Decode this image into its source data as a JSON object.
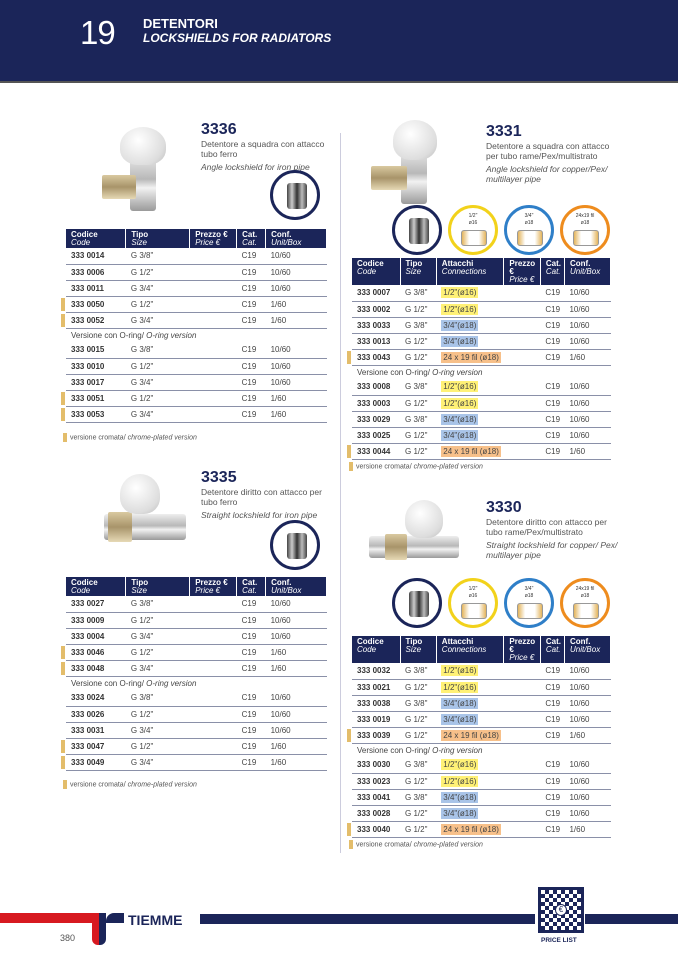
{
  "header": {
    "chapter": "19",
    "title": "DETENTORI",
    "subtitle": "LOCKSHIELDS FOR RADIATORS"
  },
  "colors": {
    "navy": "#1b2559",
    "red": "#d71920",
    "chrome_marker": "#e3bd6b",
    "conn_16": "#fff176",
    "conn_18": "#a9c4e8",
    "conn_fil": "#f7c08a"
  },
  "columns_simple": [
    [
      "Codice",
      "Code"
    ],
    [
      "Tipo",
      "Size"
    ],
    [
      "Prezzo €",
      "Price €"
    ],
    [
      "Cat.",
      "Cat."
    ],
    [
      "Conf.",
      "Unit/Box"
    ]
  ],
  "columns_conn": [
    [
      "Codice",
      "Code"
    ],
    [
      "Tipo",
      "Size"
    ],
    [
      "Attacchi",
      "Connections"
    ],
    [
      "Prezzo €",
      "Price €"
    ],
    [
      "Cat.",
      "Cat."
    ],
    [
      "Conf.",
      "Unit/Box"
    ]
  ],
  "version_label": [
    "Versione con O-ring/",
    "O-ring version"
  ],
  "legend": [
    "versione cromata/",
    "chrome-plated version"
  ],
  "connection_icons": [
    {
      "top": "1/2\"",
      "bottom": "ø16",
      "color": "#f2d21b"
    },
    {
      "top": "3/4\"",
      "bottom": "ø18",
      "color": "#2f7fc8"
    },
    {
      "top": "24x19 fil",
      "bottom": "ø18",
      "color": "#ee8c1e"
    }
  ],
  "products": [
    {
      "id": "3336",
      "desc_it": "Detentore a squadra con attacco tubo ferro",
      "desc_en": "Angle lockshield for iron pipe",
      "rows": [
        [
          "333 0014",
          "G 3/8\"",
          "C19",
          "10/60",
          0
        ],
        [
          "333 0006",
          "G 1/2\"",
          "C19",
          "10/60",
          0
        ],
        [
          "333 0011",
          "G 3/4\"",
          "C19",
          "10/60",
          0
        ],
        [
          "333 0050",
          "G 1/2\"",
          "C19",
          "1/60",
          1
        ],
        [
          "333 0052",
          "G 3/4\"",
          "C19",
          "1/60",
          1
        ]
      ],
      "rows_oring": [
        [
          "333 0015",
          "G 3/8\"",
          "C19",
          "10/60",
          0
        ],
        [
          "333 0010",
          "G 1/2\"",
          "C19",
          "10/60",
          0
        ],
        [
          "333 0017",
          "G 3/4\"",
          "C19",
          "10/60",
          0
        ],
        [
          "333 0051",
          "G 1/2\"",
          "C19",
          "1/60",
          1
        ],
        [
          "333 0053",
          "G 3/4\"",
          "C19",
          "1/60",
          1
        ]
      ]
    },
    {
      "id": "3331",
      "desc_it": "Detentore a squadra con attacco per tubo rame/Pex/multistrato",
      "desc_en": "Angle lockshield for copper/Pex/ multilayer pipe",
      "rows": [
        [
          "333 0007",
          "G 3/8\"",
          "1/2\"(ø16)",
          "C19",
          "10/60",
          0
        ],
        [
          "333 0002",
          "G 1/2\"",
          "1/2\"(ø16)",
          "C19",
          "10/60",
          0
        ],
        [
          "333 0033",
          "G 3/8\"",
          "3/4\"(ø18)",
          "C19",
          "10/60",
          0
        ],
        [
          "333 0013",
          "G 1/2\"",
          "3/4\"(ø18)",
          "C19",
          "10/60",
          0
        ],
        [
          "333 0043",
          "G 1/2\"",
          "24 x 19 fil (ø18)",
          "C19",
          "1/60",
          1
        ]
      ],
      "rows_oring": [
        [
          "333 0008",
          "G 3/8\"",
          "1/2\"(ø16)",
          "C19",
          "10/60",
          0
        ],
        [
          "333 0003",
          "G 1/2\"",
          "1/2\"(ø16)",
          "C19",
          "10/60",
          0
        ],
        [
          "333 0029",
          "G 3/8\"",
          "3/4\"(ø18)",
          "C19",
          "10/60",
          0
        ],
        [
          "333 0025",
          "G 1/2\"",
          "3/4\"(ø18)",
          "C19",
          "10/60",
          0
        ],
        [
          "333 0044",
          "G 1/2\"",
          "24 x 19 fil (ø18)",
          "C19",
          "1/60",
          1
        ]
      ]
    },
    {
      "id": "3335",
      "desc_it": "Detentore diritto con attacco per tubo ferro",
      "desc_en": "Straight lockshield for iron pipe",
      "rows": [
        [
          "333 0027",
          "G 3/8\"",
          "C19",
          "10/60",
          0
        ],
        [
          "333 0009",
          "G 1/2\"",
          "C19",
          "10/60",
          0
        ],
        [
          "333 0004",
          "G 3/4\"",
          "C19",
          "10/60",
          0
        ],
        [
          "333 0046",
          "G 1/2\"",
          "C19",
          "1/60",
          1
        ],
        [
          "333 0048",
          "G 3/4\"",
          "C19",
          "1/60",
          1
        ]
      ],
      "rows_oring": [
        [
          "333 0024",
          "G 3/8\"",
          "C19",
          "10/60",
          0
        ],
        [
          "333 0026",
          "G 1/2\"",
          "C19",
          "10/60",
          0
        ],
        [
          "333 0031",
          "G 3/4\"",
          "C19",
          "10/60",
          0
        ],
        [
          "333 0047",
          "G 1/2\"",
          "C19",
          "1/60",
          1
        ],
        [
          "333 0049",
          "G 3/4\"",
          "C19",
          "1/60",
          1
        ]
      ]
    },
    {
      "id": "3330",
      "desc_it": "Detentore diritto con attacco per tubo rame/Pex/multistrato",
      "desc_en": "Straight lockshield for copper/ Pex/ multilayer pipe",
      "rows": [
        [
          "333 0032",
          "G 3/8\"",
          "1/2\"(ø16)",
          "C19",
          "10/60",
          0
        ],
        [
          "333 0021",
          "G 1/2\"",
          "1/2\"(ø16)",
          "C19",
          "10/60",
          0
        ],
        [
          "333 0038",
          "G 3/8\"",
          "3/4\"(ø18)",
          "C19",
          "10/60",
          0
        ],
        [
          "333 0019",
          "G 1/2\"",
          "3/4\"(ø18)",
          "C19",
          "10/60",
          0
        ],
        [
          "333 0039",
          "G 1/2\"",
          "24 x 19 fil (ø18)",
          "C19",
          "1/60",
          1
        ]
      ],
      "rows_oring": [
        [
          "333 0030",
          "G 3/8\"",
          "1/2\"(ø16)",
          "C19",
          "10/60",
          0
        ],
        [
          "333 0023",
          "G 1/2\"",
          "1/2\"(ø16)",
          "C19",
          "10/60",
          0
        ],
        [
          "333 0041",
          "G 3/8\"",
          "3/4\"(ø18)",
          "C19",
          "10/60",
          0
        ],
        [
          "333 0028",
          "G 1/2\"",
          "3/4\"(ø18)",
          "C19",
          "10/60",
          0
        ],
        [
          "333 0040",
          "G 1/2\"",
          "24 x 19 fil (ø18)",
          "C19",
          "1/60",
          1
        ]
      ]
    }
  ],
  "footer": {
    "brand": "TIEMME",
    "page": "380",
    "qr_label": "PRICE LIST"
  }
}
